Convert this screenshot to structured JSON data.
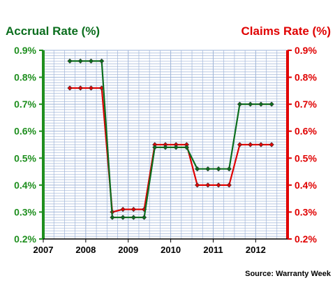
{
  "chart_data": {
    "type": "line",
    "left_title": "Accrual Rate (%)",
    "right_title": "Claims Rate (%)",
    "source": "Source: Warranty Week",
    "x_ticks": [
      "2007",
      "2008",
      "2009",
      "2010",
      "2011",
      "2012"
    ],
    "xlim": [
      2007,
      2012.75
    ],
    "ylim": [
      0.2,
      0.9
    ],
    "y_ticks": [
      "0.2%",
      "0.3%",
      "0.4%",
      "0.5%",
      "0.6%",
      "0.7%",
      "0.8%",
      "0.9%"
    ],
    "grid": true,
    "colors": {
      "accrual": "#0b6e1e",
      "claims": "#e00000",
      "grid": "#9fb4d8",
      "left_axis": "#1f8f1f",
      "right_axis": "#e00000"
    },
    "series": [
      {
        "key": "accrual",
        "x": [
          2007.625,
          2007.875,
          2008.125,
          2008.375,
          2008.625,
          2008.875,
          2009.125,
          2009.375,
          2009.625,
          2009.875,
          2010.125,
          2010.375,
          2010.625,
          2010.875,
          2011.125,
          2011.375,
          2011.625,
          2011.875,
          2012.125,
          2012.375
        ],
        "values": [
          0.86,
          0.86,
          0.86,
          0.86,
          0.28,
          0.28,
          0.28,
          0.28,
          0.54,
          0.54,
          0.54,
          0.54,
          0.46,
          0.46,
          0.46,
          0.46,
          0.7,
          0.7,
          0.7,
          0.7
        ]
      },
      {
        "key": "claims",
        "x": [
          2007.625,
          2007.875,
          2008.125,
          2008.375,
          2008.625,
          2008.875,
          2009.125,
          2009.375,
          2009.625,
          2009.875,
          2010.125,
          2010.375,
          2010.625,
          2010.875,
          2011.125,
          2011.375,
          2011.625,
          2011.875,
          2012.125,
          2012.375
        ],
        "values": [
          0.76,
          0.76,
          0.76,
          0.76,
          0.3,
          0.31,
          0.31,
          0.31,
          0.55,
          0.55,
          0.55,
          0.55,
          0.4,
          0.4,
          0.4,
          0.4,
          0.55,
          0.55,
          0.55,
          0.55
        ]
      }
    ]
  }
}
